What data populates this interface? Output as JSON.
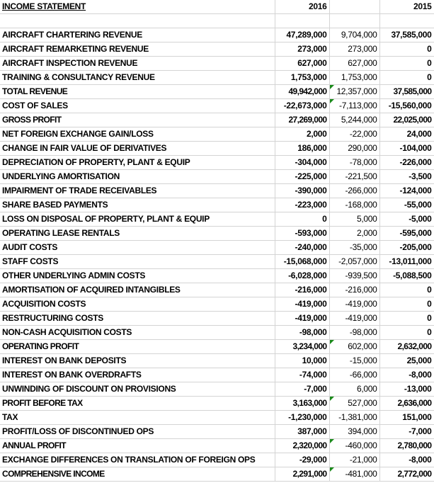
{
  "header": {
    "title": "INCOME STATEMENT",
    "col_2016": "2016",
    "col_diff": "",
    "col_2015": "2015"
  },
  "colors": {
    "positive_diff": "#1010b0",
    "negative_diff": "#c00000",
    "comment_marker": "#1a8a1a"
  },
  "rows": [
    {
      "label": "AIRCRAFT CHARTERING REVENUE",
      "y2016": "47,289,000",
      "diff": "9,704,000",
      "y2015": "37,585,000",
      "sign": "pos",
      "total": false,
      "marker": false
    },
    {
      "label": "AIRCRAFT REMARKETING REVENUE",
      "y2016": "273,000",
      "diff": "273,000",
      "y2015": "0",
      "sign": "pos",
      "total": false,
      "marker": false
    },
    {
      "label": "AIRCRAFT INSPECTION REVENUE",
      "y2016": "627,000",
      "diff": "627,000",
      "y2015": "0",
      "sign": "pos",
      "total": false,
      "marker": false
    },
    {
      "label": "TRAINING & CONSULTANCY REVENUE",
      "y2016": "1,753,000",
      "diff": "1,753,000",
      "y2015": "0",
      "sign": "pos",
      "total": false,
      "marker": false
    },
    {
      "label": "TOTAL REVENUE",
      "y2016": "49,942,000",
      "diff": "12,357,000",
      "y2015": "37,585,000",
      "sign": "pos",
      "total": true,
      "marker": true
    },
    {
      "label": "COST OF SALES",
      "y2016": "-22,673,000",
      "diff": "-7,113,000",
      "y2015": "-15,560,000",
      "sign": "neg",
      "total": false,
      "marker": true
    },
    {
      "label": "GROSS PROFIT",
      "y2016": "27,269,000",
      "diff": "5,244,000",
      "y2015": "22,025,000",
      "sign": "pos",
      "total": true,
      "marker": false
    },
    {
      "label": "NET FOREIGN EXCHANGE GAIN/LOSS",
      "y2016": "2,000",
      "diff": "-22,000",
      "y2015": "24,000",
      "sign": "neg",
      "total": false,
      "marker": false
    },
    {
      "label": "CHANGE IN FAIR VALUE OF DERIVATIVES",
      "y2016": "186,000",
      "diff": "290,000",
      "y2015": "-104,000",
      "sign": "pos",
      "total": false,
      "marker": false
    },
    {
      "label": "DEPRECIATION OF PROPERTY, PLANT & EQUIP",
      "y2016": "-304,000",
      "diff": "-78,000",
      "y2015": "-226,000",
      "sign": "neg",
      "total": false,
      "marker": false
    },
    {
      "label": "UNDERLYING AMORTISATION",
      "y2016": "-225,000",
      "diff": "-221,500",
      "y2015": "-3,500",
      "sign": "neg",
      "total": false,
      "marker": false
    },
    {
      "label": "IMPAIRMENT OF TRADE RECEIVABLES",
      "y2016": "-390,000",
      "diff": "-266,000",
      "y2015": "-124,000",
      "sign": "neg",
      "total": false,
      "marker": false
    },
    {
      "label": "SHARE BASED PAYMENTS",
      "y2016": "-223,000",
      "diff": "-168,000",
      "y2015": "-55,000",
      "sign": "neg",
      "total": false,
      "marker": false
    },
    {
      "label": "LOSS ON DISPOSAL OF PROPERTY, PLANT & EQUIP",
      "y2016": "0",
      "diff": "5,000",
      "y2015": "-5,000",
      "sign": "pos",
      "total": false,
      "marker": false
    },
    {
      "label": "OPERATING LEASE RENTALS",
      "y2016": "-593,000",
      "diff": "2,000",
      "y2015": "-595,000",
      "sign": "pos",
      "total": false,
      "marker": false
    },
    {
      "label": "AUDIT COSTS",
      "y2016": "-240,000",
      "diff": "-35,000",
      "y2015": "-205,000",
      "sign": "neg",
      "total": false,
      "marker": false
    },
    {
      "label": "STAFF COSTS",
      "y2016": "-15,068,000",
      "diff": "-2,057,000",
      "y2015": "-13,011,000",
      "sign": "neg",
      "total": false,
      "marker": false
    },
    {
      "label": "OTHER UNDERLYING ADMIN COSTS",
      "y2016": "-6,028,000",
      "diff": "-939,500",
      "y2015": "-5,088,500",
      "sign": "neg",
      "total": false,
      "marker": false
    },
    {
      "label": "AMORTISATION OF ACQUIRED INTANGIBLES",
      "y2016": "-216,000",
      "diff": "-216,000",
      "y2015": "0",
      "sign": "neg",
      "total": false,
      "marker": false
    },
    {
      "label": "ACQUISITION COSTS",
      "y2016": "-419,000",
      "diff": "-419,000",
      "y2015": "0",
      "sign": "neg",
      "total": false,
      "marker": false
    },
    {
      "label": "RESTRUCTURING COSTS",
      "y2016": "-419,000",
      "diff": "-419,000",
      "y2015": "0",
      "sign": "neg",
      "total": false,
      "marker": false
    },
    {
      "label": "NON-CASH ACQUISITION COSTS",
      "y2016": "-98,000",
      "diff": "-98,000",
      "y2015": "0",
      "sign": "neg",
      "total": false,
      "marker": false
    },
    {
      "label": "OPERATING PROFIT",
      "y2016": "3,234,000",
      "diff": "602,000",
      "y2015": "2,632,000",
      "sign": "pos",
      "total": true,
      "marker": true
    },
    {
      "label": "INTEREST ON BANK DEPOSITS",
      "y2016": "10,000",
      "diff": "-15,000",
      "y2015": "25,000",
      "sign": "neg",
      "total": false,
      "marker": false
    },
    {
      "label": "INTEREST ON BANK OVERDRAFTS",
      "y2016": "-74,000",
      "diff": "-66,000",
      "y2015": "-8,000",
      "sign": "neg",
      "total": false,
      "marker": false
    },
    {
      "label": "UNWINDING OF DISCOUNT ON PROVISIONS",
      "y2016": "-7,000",
      "diff": "6,000",
      "y2015": "-13,000",
      "sign": "pos",
      "total": false,
      "marker": false
    },
    {
      "label": "PROFIT BEFORE TAX",
      "y2016": "3,163,000",
      "diff": "527,000",
      "y2015": "2,636,000",
      "sign": "pos",
      "total": true,
      "marker": true
    },
    {
      "label": "TAX",
      "y2016": "-1,230,000",
      "diff": "-1,381,000",
      "y2015": "151,000",
      "sign": "neg",
      "total": false,
      "marker": false
    },
    {
      "label": "PROFIT/LOSS OF DISCONTINUED OPS",
      "y2016": "387,000",
      "diff": "394,000",
      "y2015": "-7,000",
      "sign": "pos",
      "total": false,
      "marker": false
    },
    {
      "label": "ANNUAL PROFIT",
      "y2016": "2,320,000",
      "diff": "-460,000",
      "y2015": "2,780,000",
      "sign": "neg",
      "total": true,
      "marker": true
    },
    {
      "label": "EXCHANGE DIFFERENCES ON TRANSLATION OF FOREIGN OPS",
      "y2016": "-29,000",
      "diff": "-21,000",
      "y2015": "-8,000",
      "sign": "neg",
      "total": false,
      "marker": false
    },
    {
      "label": "COMPREHENSIVE INCOME",
      "y2016": "2,291,000",
      "diff": "-481,000",
      "y2015": "2,772,000",
      "sign": "neg",
      "total": true,
      "marker": true
    }
  ]
}
